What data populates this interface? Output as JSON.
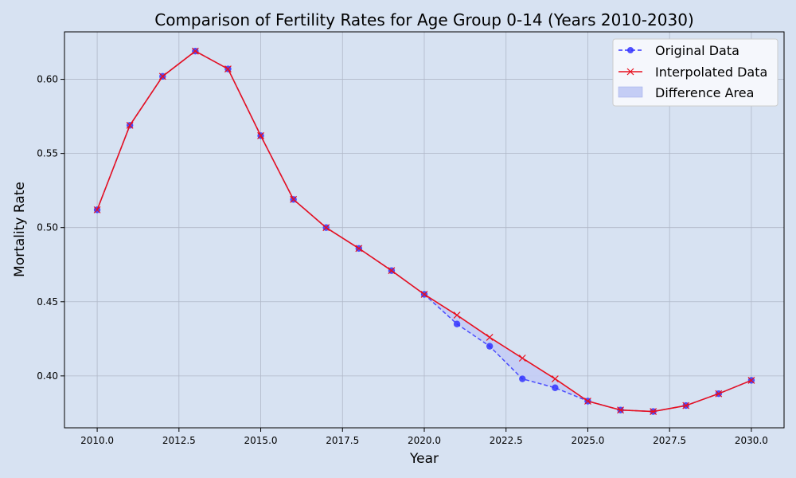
{
  "chart_data": {
    "type": "line",
    "title": "Comparison of Fertility Rates for Age Group 0-14 (Years 2010-2030)",
    "xlabel": "Year",
    "ylabel": "Mortality Rate",
    "xlim": [
      2009,
      2031
    ],
    "ylim": [
      0.365,
      0.632
    ],
    "x_ticks": [
      2010.0,
      2012.5,
      2015.0,
      2017.5,
      2020.0,
      2022.5,
      2025.0,
      2027.5,
      2030.0
    ],
    "x_tick_labels": [
      "2010.0",
      "2012.5",
      "2015.0",
      "2017.5",
      "2020.0",
      "2022.5",
      "2025.0",
      "2027.5",
      "2030.0"
    ],
    "y_ticks": [
      0.4,
      0.45,
      0.5,
      0.55,
      0.6
    ],
    "y_tick_labels": [
      "0.40",
      "0.45",
      "0.50",
      "0.55",
      "0.60"
    ],
    "grid": true,
    "legend_position": "top-right",
    "x": [
      2010,
      2011,
      2012,
      2013,
      2014,
      2015,
      2016,
      2017,
      2018,
      2019,
      2020,
      2021,
      2022,
      2023,
      2024,
      2025,
      2026,
      2027,
      2028,
      2029,
      2030
    ],
    "series": [
      {
        "name": "Original Data",
        "color": "#3333ff",
        "style": "dashed-circle",
        "values": [
          0.512,
          0.569,
          0.602,
          0.619,
          0.607,
          0.562,
          0.519,
          0.5,
          0.486,
          0.471,
          0.455,
          0.435,
          0.42,
          0.398,
          0.392,
          0.383,
          0.377,
          0.376,
          0.38,
          0.388,
          0.397
        ]
      },
      {
        "name": "Interpolated Data",
        "color": "#e8101e",
        "style": "solid-x",
        "values": [
          0.512,
          0.569,
          0.602,
          0.619,
          0.607,
          0.562,
          0.519,
          0.5,
          0.486,
          0.471,
          0.455,
          0.441,
          0.426,
          0.412,
          0.398,
          0.383,
          0.377,
          0.376,
          0.38,
          0.388,
          0.397
        ]
      }
    ],
    "fill_between": {
      "name": "Difference Area",
      "color": "#c4cdf5",
      "between": [
        "Original Data",
        "Interpolated Data"
      ]
    }
  }
}
